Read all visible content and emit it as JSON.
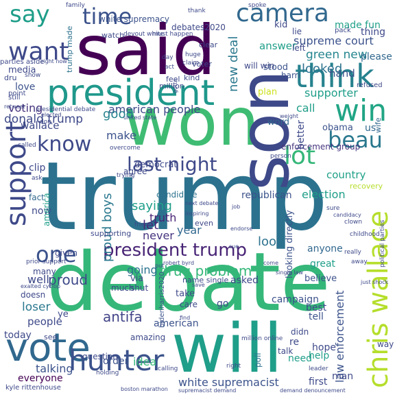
{
  "wordcloud": {
    "words": [
      {
        "text": "trump",
        "color": "#2c728e"
      },
      {
        "text": "debate",
        "color": "#35b779"
      },
      {
        "text": "said",
        "color": "#440154"
      },
      {
        "text": "won",
        "color": "#3fbc73"
      },
      {
        "text": "son",
        "color": "#3e4989"
      },
      {
        "text": "will",
        "color": "#1f9e89"
      },
      {
        "text": "president",
        "color": "#1f988b"
      },
      {
        "text": "vote",
        "color": "#31688e"
      },
      {
        "text": "chris wallace",
        "color": "#b5de2b"
      },
      {
        "text": "hunter",
        "color": "#3b528b"
      },
      {
        "text": "think",
        "color": "#26828e"
      },
      {
        "text": "win",
        "color": "#21a585"
      },
      {
        "text": "support",
        "color": "#3e4989"
      },
      {
        "text": "camera",
        "color": "#31688e"
      },
      {
        "text": "want",
        "color": "#3e4989"
      },
      {
        "text": "say",
        "color": "#1f9e89"
      },
      {
        "text": "time",
        "color": "#3b528b"
      },
      {
        "text": "know",
        "color": "#3e4989"
      },
      {
        "text": "lot",
        "color": "#35b779"
      },
      {
        "text": "last night",
        "color": "#3e4989"
      },
      {
        "text": "beau",
        "color": "#2a788e"
      },
      {
        "text": "president trump",
        "color": "#482475"
      },
      {
        "text": "one",
        "color": "#3b528b"
      },
      {
        "text": "supreme court",
        "color": "#3b528b"
      },
      {
        "text": "green new",
        "color": "#25858e"
      },
      {
        "text": "looked",
        "color": "#2c728e"
      },
      {
        "text": "new deal",
        "color": "#2a788e"
      },
      {
        "text": "made fun",
        "color": "#1fa088"
      },
      {
        "text": "american people",
        "color": "#3e4989"
      },
      {
        "text": "donald trump",
        "color": "#3e4989"
      },
      {
        "text": "drug problem",
        "color": "#35b779"
      },
      {
        "text": "white supremacist",
        "color": "#3b528b"
      },
      {
        "text": "law enforcement",
        "color": "#3b528b"
      },
      {
        "text": "enforcement group",
        "color": "#46337e"
      },
      {
        "text": "antifa",
        "color": "#414487"
      },
      {
        "text": "proud boys",
        "color": "#2a788e"
      },
      {
        "text": "proud",
        "color": "#3e4989"
      },
      {
        "text": "republican",
        "color": "#3b528b"
      },
      {
        "text": "election",
        "color": "#1f9e89"
      },
      {
        "text": "country",
        "color": "#1fa088"
      },
      {
        "text": "truth",
        "color": "#482475"
      },
      {
        "text": "candidate",
        "color": "#2c728e"
      },
      {
        "text": "democrat",
        "color": "#3e4989"
      },
      {
        "text": "saying",
        "color": "#1f9e89"
      },
      {
        "text": "year",
        "color": "#31688e"
      },
      {
        "text": "let",
        "color": "#482475"
      },
      {
        "text": "never",
        "color": "#46337e"
      },
      {
        "text": "going",
        "color": "#2c728e"
      },
      {
        "text": "make",
        "color": "#3b528b"
      },
      {
        "text": "good",
        "color": "#26828e"
      },
      {
        "text": "voting",
        "color": "#46337e"
      },
      {
        "text": "media",
        "color": "#3e4989"
      },
      {
        "text": "love",
        "color": "#3b528b"
      },
      {
        "text": "wallace",
        "color": "#3e4989"
      },
      {
        "text": "clip",
        "color": "#3e4989"
      },
      {
        "text": "fact",
        "color": "#31688e"
      },
      {
        "text": "now",
        "color": "#3e4989"
      },
      {
        "text": "america",
        "color": "#1f9e89"
      },
      {
        "text": "well",
        "color": "#3e4989"
      },
      {
        "text": "loser",
        "color": "#2a788e"
      },
      {
        "text": "people",
        "color": "#3e4989"
      },
      {
        "text": "today",
        "color": "#3e4989"
      },
      {
        "text": "talking",
        "color": "#3b528b"
      },
      {
        "text": "everyone",
        "color": "#440154"
      },
      {
        "text": "order",
        "color": "#3b528b"
      },
      {
        "text": "idea",
        "color": "#35b779"
      },
      {
        "text": "american",
        "color": "#3b528b"
      },
      {
        "text": "asked",
        "color": "#3e4989"
      },
      {
        "text": "look",
        "color": "#2c728e"
      },
      {
        "text": "campaign",
        "color": "#3b528b"
      },
      {
        "text": "poll",
        "color": "#2c728e"
      },
      {
        "text": "help",
        "color": "#1f9e89"
      },
      {
        "text": "need",
        "color": "#1f9e89"
      },
      {
        "text": "hope",
        "color": "#3e4989"
      },
      {
        "text": "tell",
        "color": "#3b528b"
      },
      {
        "text": "best",
        "color": "#3e4989"
      },
      {
        "text": "first",
        "color": "#3e4989"
      },
      {
        "text": "man",
        "color": "#3e4989"
      },
      {
        "text": "believe",
        "color": "#3b528b"
      },
      {
        "text": "great",
        "color": "#1f9e89"
      },
      {
        "text": "anyone",
        "color": "#31688e"
      },
      {
        "text": "word",
        "color": "#31688e"
      },
      {
        "text": "better",
        "color": "#3e4989"
      },
      {
        "text": "call",
        "color": "#1f9e89"
      },
      {
        "text": "obama",
        "color": "#3b528b"
      },
      {
        "text": "us",
        "color": "#31688e"
      },
      {
        "text": "wife",
        "color": "#31688e"
      },
      {
        "text": "supporter",
        "color": "#1f9e89"
      },
      {
        "text": "answer",
        "color": "#1f9e89"
      },
      {
        "text": "stood",
        "color": "#3b528b"
      },
      {
        "text": "hand",
        "color": "#3b528b"
      },
      {
        "text": "harri",
        "color": "#3b528b"
      },
      {
        "text": "please",
        "color": "#31688e"
      },
      {
        "text": "thing",
        "color": "#3e4989"
      },
      {
        "text": "kid",
        "color": "#3e4989"
      },
      {
        "text": "lie",
        "color": "#3e4989"
      },
      {
        "text": "left",
        "color": "#3e4989"
      },
      {
        "text": "will win",
        "color": "#3e4989"
      },
      {
        "text": "plan",
        "color": "#cde11d"
      },
      {
        "text": "looking directly",
        "color": "#3b528b"
      },
      {
        "text": "debates2020",
        "color": "#3e4989"
      },
      {
        "text": "white supremacy",
        "color": "#3b528b"
      },
      {
        "text": "trump made",
        "color": "#2c728e"
      },
      {
        "text": "watch",
        "color": "#3e4989"
      },
      {
        "text": "million",
        "color": "#3e4989"
      },
      {
        "text": "voter",
        "color": "#3e4989"
      },
      {
        "text": "clear",
        "color": "#3e4989"
      },
      {
        "text": "feel",
        "color": "#3e4989"
      },
      {
        "text": "kind",
        "color": "#3e4989"
      },
      {
        "text": "bidenharris2020",
        "color": "#3b528b"
      },
      {
        "text": "via",
        "color": "#3e4989"
      },
      {
        "text": "much",
        "color": "#3e4989"
      },
      {
        "text": "shut",
        "color": "#3e4989"
      },
      {
        "text": "many",
        "color": "#3e4989"
      },
      {
        "text": "doesn",
        "color": "#3e4989"
      },
      {
        "text": "ye",
        "color": "#3e4989"
      },
      {
        "text": "given",
        "color": "#3e4989"
      },
      {
        "text": "supporting",
        "color": "#3e4989"
      },
      {
        "text": "question",
        "color": "#3e4989"
      },
      {
        "text": "amazing",
        "color": "#3e4989"
      },
      {
        "text": "see",
        "color": "#3e4989"
      },
      {
        "text": "go",
        "color": "#3e4989"
      },
      {
        "text": "take",
        "color": "#3e4989"
      },
      {
        "text": "care",
        "color": "#3e4989"
      },
      {
        "text": "name single",
        "color": "#3e4989"
      },
      {
        "text": "even",
        "color": "#3e4989"
      },
      {
        "text": "re",
        "color": "#3e4989"
      },
      {
        "text": "didn",
        "color": "#3e4989"
      },
      {
        "text": "talk",
        "color": "#3e4989"
      },
      {
        "text": "way",
        "color": "#3e4989"
      },
      {
        "text": "recovery",
        "color": "#b5de2b"
      },
      {
        "text": "family",
        "color": "#3e4989"
      },
      {
        "text": "spoke",
        "color": "#3e4989"
      },
      {
        "text": "pack",
        "color": "#3e4989"
      },
      {
        "text": "thank",
        "color": "#3e4989"
      },
      {
        "text": "devout white",
        "color": "#3e4989"
      },
      {
        "text": "must happen",
        "color": "#3e4989"
      },
      {
        "text": "act",
        "color": "#3e4989"
      },
      {
        "text": "day",
        "color": "#3e4989"
      },
      {
        "text": "huge",
        "color": "#3e4989"
      },
      {
        "text": "claim",
        "color": "#3e4989"
      },
      {
        "text": "parties aside",
        "color": "#3e4989"
      },
      {
        "text": "right now",
        "color": "#3e4989"
      },
      {
        "text": "dru",
        "color": "#3e4989"
      },
      {
        "text": "show",
        "color": "#3e4989"
      },
      {
        "text": "still",
        "color": "#3e4989"
      },
      {
        "text": "point",
        "color": "#3e4989"
      },
      {
        "text": "retweet",
        "color": "#3e4989"
      },
      {
        "text": "presidential debate",
        "color": "#3e4989"
      },
      {
        "text": "elected",
        "color": "#3e4989"
      },
      {
        "text": "united state",
        "color": "#3e4989"
      },
      {
        "text": "gotta",
        "color": "#3e4989"
      },
      {
        "text": "don",
        "color": "#3e4989"
      },
      {
        "text": "refused",
        "color": "#3e4989"
      },
      {
        "text": "weight",
        "color": "#3e4989"
      },
      {
        "text": "called",
        "color": "#3e4989"
      },
      {
        "text": "overcome",
        "color": "#3e4989"
      },
      {
        "text": "person",
        "color": "#3e4989"
      },
      {
        "text": "ask",
        "color": "#3e4989"
      },
      {
        "text": "trying",
        "color": "#3e4989"
      },
      {
        "text": "agree",
        "color": "#3e4989"
      },
      {
        "text": "next debate",
        "color": "#3e4989"
      },
      {
        "text": "job",
        "color": "#3e4989"
      },
      {
        "text": "inspiring",
        "color": "#3e4989"
      },
      {
        "text": "friend",
        "color": "#3e4989"
      },
      {
        "text": "endorse",
        "color": "#3e4989"
      },
      {
        "text": "sure",
        "color": "#3e4989"
      },
      {
        "text": "candidacy",
        "color": "#3e4989"
      },
      {
        "text": "clown",
        "color": "#3e4989"
      },
      {
        "text": "childhood",
        "color": "#3e4989"
      },
      {
        "text": "political parties",
        "color": "#3e4989"
      },
      {
        "text": "really",
        "color": "#3e4989"
      },
      {
        "text": "away",
        "color": "#3e4989"
      },
      {
        "text": "prior support",
        "color": "#3e4989"
      },
      {
        "text": "robert byrd",
        "color": "#3e4989"
      },
      {
        "text": "sue",
        "color": "#3e4989"
      },
      {
        "text": "come",
        "color": "#3e4989"
      },
      {
        "text": "put",
        "color": "#3e4989"
      },
      {
        "text": "exalted cyclop",
        "color": "#3e4989"
      },
      {
        "text": "single law",
        "color": "#3e4989"
      },
      {
        "text": "just shock",
        "color": "#3e4989"
      },
      {
        "text": "find",
        "color": "#3e4989"
      },
      {
        "text": "save",
        "color": "#3e4989"
      },
      {
        "text": "million online",
        "color": "#3e4989"
      },
      {
        "text": "leader",
        "color": "#3e4989"
      },
      {
        "text": "calling",
        "color": "#3e4989"
      },
      {
        "text": "holding",
        "color": "#3e4989"
      },
      {
        "text": "right",
        "color": "#3e4989"
      },
      {
        "text": "kyle rittenhouse",
        "color": "#3e4989"
      },
      {
        "text": "boston marathon",
        "color": "#3e4989"
      },
      {
        "text": "supremacist demand",
        "color": "#3e4989"
      },
      {
        "text": "demand denouncement",
        "color": "#3e4989"
      }
    ]
  }
}
